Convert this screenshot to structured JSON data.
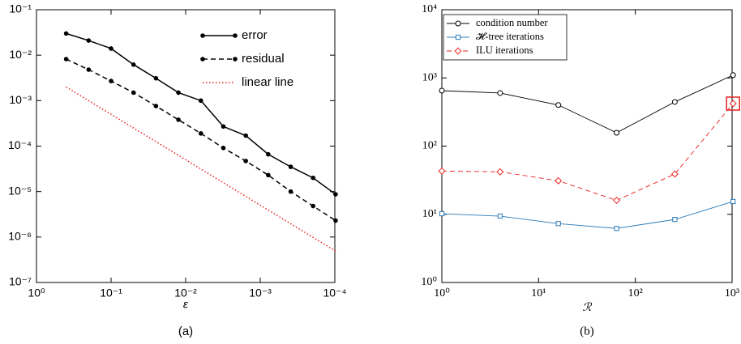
{
  "chart_data": [
    {
      "type": "line",
      "caption": "(a)",
      "xlabel": "ε",
      "xscale": "log",
      "yscale": "log",
      "x": [
        0.4,
        0.2,
        0.1,
        0.05,
        0.025,
        0.0125,
        0.00625,
        0.003125,
        0.0015625,
        0.00078125,
        0.000390625,
        0.0001953125,
        9.765625e-05
      ],
      "series": [
        {
          "name": "error",
          "color": "#000000",
          "dash": "solid",
          "marker": "dot",
          "values": [
            0.03,
            0.021,
            0.014,
            0.0062,
            0.0031,
            0.0015,
            0.001,
            0.00027,
            0.00017,
            6.6e-05,
            3.5e-05,
            2e-05,
            8.7e-06
          ]
        },
        {
          "name": "residual",
          "color": "#000000",
          "dash": "dashed",
          "marker": "dot",
          "values": [
            0.0082,
            0.0048,
            0.0027,
            0.0015,
            0.00076,
            0.00038,
            0.00019,
            9.1e-05,
            4.7e-05,
            2.3e-05,
            1e-05,
            4.8e-06,
            2.3e-06
          ]
        },
        {
          "name": "linear line",
          "color": "#e8211f",
          "dash": "dotted",
          "marker": "none",
          "x": [
            0.4,
            9.765625e-05
          ],
          "values": [
            0.002,
            4.9e-07
          ]
        }
      ],
      "xlim": [
        1,
        0.0001
      ],
      "xticks": [
        {
          "value": 1,
          "label": "10⁰"
        },
        {
          "value": 0.1,
          "label": "10⁻¹"
        },
        {
          "value": 0.01,
          "label": "10⁻²"
        },
        {
          "value": 0.001,
          "label": "10⁻³"
        },
        {
          "value": 0.0001,
          "label": "10⁻⁴"
        }
      ],
      "ylim": [
        1e-07,
        0.1
      ],
      "yticks": [
        {
          "value": 1e-07,
          "label": "10⁻⁷"
        },
        {
          "value": 1e-06,
          "label": "10⁻⁶"
        },
        {
          "value": 1e-05,
          "label": "10⁻⁵"
        },
        {
          "value": 0.0001,
          "label": "10⁻⁴"
        },
        {
          "value": 0.001,
          "label": "10⁻³"
        },
        {
          "value": 0.01,
          "label": "10⁻²"
        },
        {
          "value": 0.1,
          "label": "10⁻¹"
        }
      ],
      "legend": "upper right"
    },
    {
      "type": "line",
      "caption": "(b)",
      "xlabel": "ℛ",
      "xscale": "log",
      "yscale": "log",
      "x": [
        1,
        4,
        16,
        64,
        256,
        1024
      ],
      "series": [
        {
          "name": "condition number",
          "color": "#000000",
          "dash": "solid",
          "marker": "circle",
          "values": [
            650,
            600,
            400,
            157,
            444,
            1100
          ]
        },
        {
          "name": "𝓗-tree iterations",
          "color": "#2b7bb9",
          "dash": "solid",
          "marker": "square",
          "values": [
            10.2,
            9.4,
            7.3,
            6.2,
            8.4,
            15.4
          ]
        },
        {
          "name": "ILU iterations",
          "color": "#e8211f",
          "dash": "dashed",
          "marker": "diamond",
          "values": [
            43,
            42,
            31,
            16,
            39,
            420
          ]
        }
      ],
      "xlim": [
        1,
        1000
      ],
      "xticks": [
        {
          "value": 1,
          "label": "10⁰"
        },
        {
          "value": 10,
          "label": "10¹"
        },
        {
          "value": 100,
          "label": "10²"
        },
        {
          "value": 1000,
          "label": "10³"
        }
      ],
      "ylim": [
        1,
        10000
      ],
      "yticks": [
        {
          "value": 1,
          "label": "10⁰"
        },
        {
          "value": 10,
          "label": "10¹"
        },
        {
          "value": 100,
          "label": "10²"
        },
        {
          "value": 1000,
          "label": "10³"
        },
        {
          "value": 10000,
          "label": "10⁴"
        }
      ],
      "legend": "upper left"
    }
  ]
}
